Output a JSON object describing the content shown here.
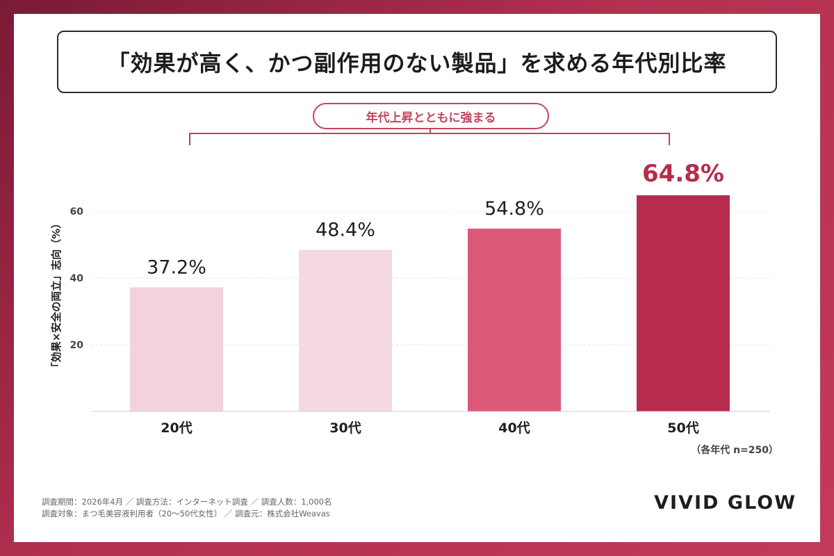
{
  "title": "「効果が高く、かつ副作用のない製品」を求める年代別比率",
  "annotation": "年代上昇とともに強まる",
  "note": "（各年代 n=250）",
  "footer": {
    "line1": "調査期間：2026年4月 ／ 調査方法：インターネット調査 ／ 調査人数：1,000名",
    "line2": "調査対象：まつ毛美容液利用者（20〜50代女性） ／ 調査元：株式会社Weavas"
  },
  "brand": "VIVID GLOW",
  "chart_data": {
    "type": "bar",
    "ylabel": "「効果×安全の両立」志向（%）",
    "xlabel": "",
    "ylim": [
      0,
      70
    ],
    "yticks": [
      20,
      40,
      60
    ],
    "grid": true,
    "categories": [
      "20代",
      "30代",
      "40代",
      "50代"
    ],
    "values": [
      37.2,
      48.4,
      54.8,
      64.8
    ],
    "labels": [
      "37.2%",
      "48.4%",
      "54.8%",
      "64.8%"
    ],
    "colors": [
      "#f2d3dd",
      "#f4d9e2",
      "#dc5a78",
      "#b72c4c"
    ],
    "label_colors": [
      "#1f1f1f",
      "#1f1f1f",
      "#1f1f1f",
      "#b72c4c"
    ]
  }
}
